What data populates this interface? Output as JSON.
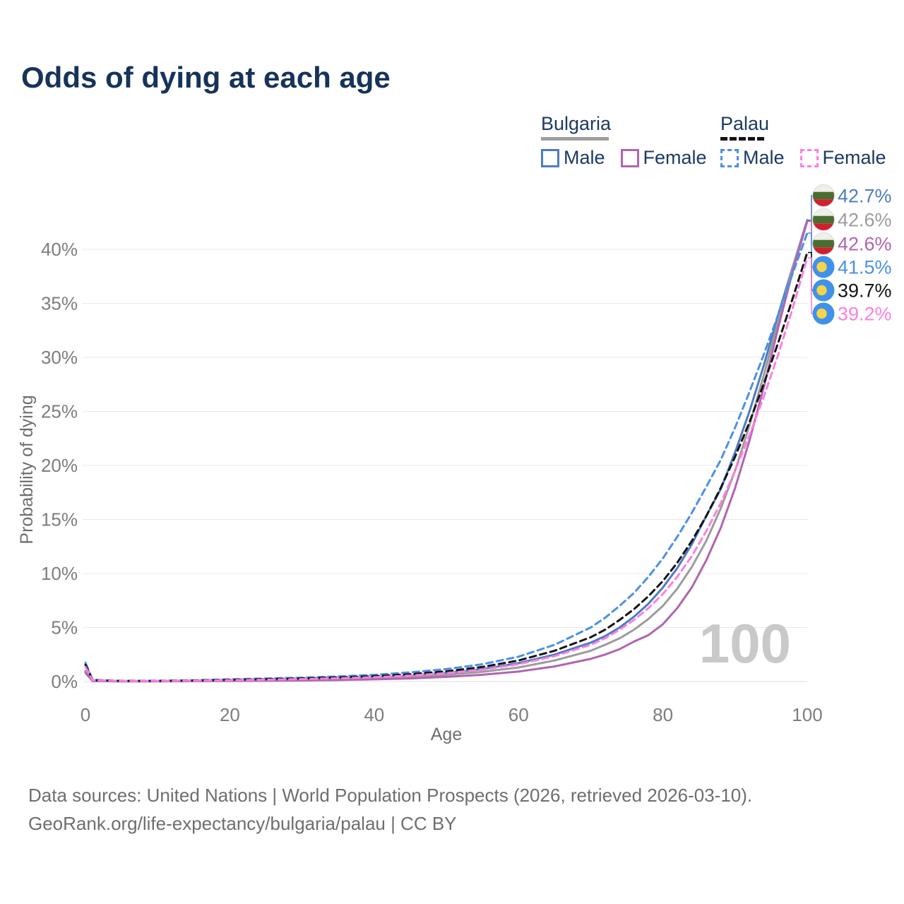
{
  "title": "Odds of dying at each age",
  "legend": {
    "groups": [
      {
        "country": "Bulgaria",
        "line_style": "solid",
        "underline_color": "#9e9e9e",
        "items": [
          {
            "label": "Male",
            "color": "#4e7cc1",
            "dashed": false
          },
          {
            "label": "Female",
            "color": "#b065b0",
            "dashed": false
          }
        ]
      },
      {
        "country": "Palau",
        "line_style": "dashed",
        "underline_color": "#141414",
        "items": [
          {
            "label": "Male",
            "color": "#4a90e8",
            "dashed": true
          },
          {
            "label": "Female",
            "color": "#ff7ee0",
            "dashed": true
          }
        ]
      }
    ]
  },
  "axes": {
    "y_label": "Probability of dying",
    "x_label": "Age",
    "y_ticks": [
      "0%",
      "5%",
      "10%",
      "15%",
      "20%",
      "25%",
      "30%",
      "35%",
      "40%"
    ],
    "x_ticks": [
      "0",
      "20",
      "40",
      "60",
      "80",
      "100"
    ]
  },
  "watermark": "100",
  "footer": {
    "line1": "Data sources: United Nations | World Population Prospects (2026, retrieved 2026-03-10).",
    "line2": "GeoRank.org/life-expectancy/bulgaria/palau | CC BY"
  },
  "chart_data": {
    "type": "line",
    "title": "Odds of dying at each age",
    "xlabel": "Age",
    "ylabel": "Probability of dying",
    "x_range": [
      0,
      100
    ],
    "y_range_percent": [
      0,
      45
    ],
    "grid": true,
    "legend_position": "top-right",
    "x": [
      0,
      1,
      5,
      10,
      15,
      20,
      25,
      30,
      35,
      40,
      45,
      50,
      55,
      60,
      65,
      70,
      72,
      74,
      76,
      78,
      80,
      82,
      84,
      86,
      88,
      90,
      92,
      94,
      96,
      98,
      100
    ],
    "series": [
      {
        "id": "bulgaria-male",
        "name": "Bulgaria Male",
        "color": "#4e7cc1",
        "dash": null,
        "flag": "bulgaria",
        "end_label": "42.7%",
        "values": [
          0.95,
          0.06,
          0.03,
          0.03,
          0.06,
          0.1,
          0.14,
          0.19,
          0.27,
          0.38,
          0.55,
          0.8,
          1.15,
          1.7,
          2.5,
          3.6,
          4.2,
          5.0,
          6.0,
          7.2,
          8.7,
          10.5,
          12.7,
          15.3,
          17.8,
          21.2,
          25.0,
          29.3,
          34.0,
          38.4,
          42.7
        ]
      },
      {
        "id": "bulgaria-both",
        "name": "Bulgaria",
        "color": "#9c9c9c",
        "dash": null,
        "flag": "bulgaria",
        "end_label": "42.6%",
        "values": [
          0.88,
          0.05,
          0.02,
          0.03,
          0.05,
          0.08,
          0.11,
          0.15,
          0.21,
          0.3,
          0.43,
          0.62,
          0.9,
          1.3,
          1.95,
          2.85,
          3.4,
          4.0,
          4.8,
          5.8,
          7.0,
          8.6,
          10.6,
          13.0,
          16.0,
          19.5,
          23.7,
          28.4,
          33.4,
          38.3,
          42.6
        ]
      },
      {
        "id": "bulgaria-female",
        "name": "Bulgaria Female",
        "color": "#b065b0",
        "dash": null,
        "flag": "bulgaria",
        "end_label": "42.6%",
        "values": [
          0.8,
          0.04,
          0.02,
          0.02,
          0.03,
          0.05,
          0.07,
          0.1,
          0.14,
          0.2,
          0.29,
          0.43,
          0.63,
          0.92,
          1.4,
          2.1,
          2.5,
          3.0,
          3.7,
          4.3,
          5.3,
          6.8,
          8.7,
          11.2,
          14.2,
          17.9,
          22.3,
          27.3,
          32.8,
          38.0,
          42.6
        ]
      },
      {
        "id": "palau-male",
        "name": "Palau Male",
        "color": "#4a90e8",
        "dash": "9 6",
        "flag": "palau",
        "end_label": "41.5%",
        "values": [
          1.75,
          0.15,
          0.06,
          0.07,
          0.12,
          0.2,
          0.28,
          0.36,
          0.47,
          0.62,
          0.85,
          1.15,
          1.6,
          2.3,
          3.4,
          5.0,
          5.9,
          7.0,
          8.2,
          9.7,
          11.4,
          13.4,
          15.6,
          18.0,
          20.5,
          23.5,
          26.8,
          30.3,
          34.0,
          37.8,
          41.5
        ]
      },
      {
        "id": "palau-both",
        "name": "Palau",
        "color": "#141414",
        "dash": "9 6",
        "flag": "palau",
        "end_label": "39.7%",
        "values": [
          1.55,
          0.13,
          0.05,
          0.06,
          0.1,
          0.16,
          0.22,
          0.29,
          0.38,
          0.5,
          0.68,
          0.95,
          1.35,
          1.95,
          2.85,
          4.1,
          4.8,
          5.7,
          6.7,
          7.9,
          9.3,
          11.0,
          13.0,
          15.3,
          17.9,
          20.8,
          24.0,
          27.6,
          31.4,
          35.5,
          39.7
        ]
      },
      {
        "id": "palau-female",
        "name": "Palau Female",
        "color": "#ff7ee0",
        "dash": "9 6",
        "flag": "palau",
        "end_label": "39.2%",
        "values": [
          1.35,
          0.11,
          0.04,
          0.05,
          0.08,
          0.12,
          0.17,
          0.22,
          0.3,
          0.4,
          0.55,
          0.78,
          1.1,
          1.6,
          2.35,
          3.4,
          4.0,
          4.8,
          5.7,
          6.8,
          8.1,
          9.7,
          11.6,
          13.9,
          16.5,
          19.5,
          22.8,
          26.4,
          30.3,
          34.6,
          39.2
        ]
      }
    ]
  }
}
